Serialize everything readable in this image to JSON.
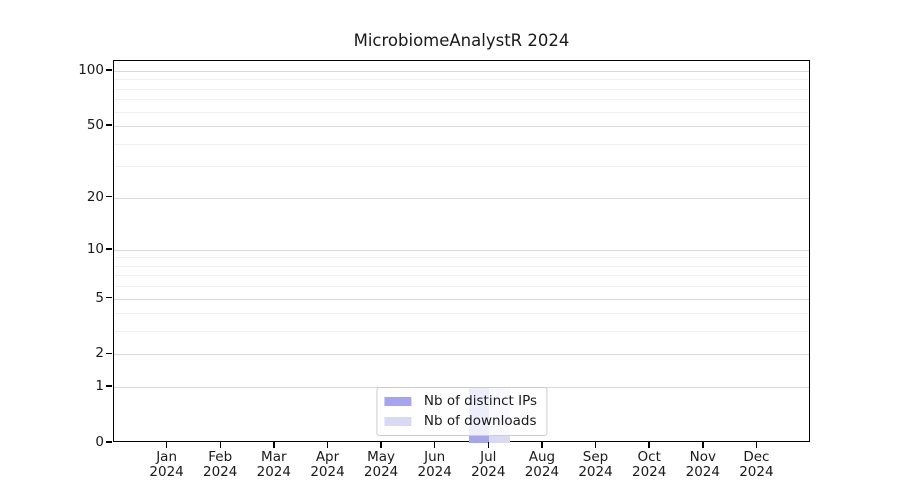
{
  "chart_data": {
    "type": "bar",
    "title": "MicrobiomeAnalystR 2024",
    "categories": [
      "Jan",
      "Feb",
      "Mar",
      "Apr",
      "May",
      "Jun",
      "Jul",
      "Aug",
      "Sep",
      "Oct",
      "Nov",
      "Dec"
    ],
    "category_year": "2024",
    "series": [
      {
        "name": "Nb of distinct IPs",
        "color": "#a5a5ed",
        "values": [
          0,
          0,
          0,
          0,
          0,
          0,
          1,
          0,
          0,
          0,
          0,
          0
        ]
      },
      {
        "name": "Nb of downloads",
        "color": "#d9d9f6",
        "values": [
          0,
          0,
          0,
          0,
          0,
          0,
          1,
          0,
          0,
          0,
          0,
          0
        ]
      }
    ],
    "y_scale": "log1p",
    "y_major_ticks": [
      0,
      1,
      2,
      5,
      10,
      20,
      50,
      100
    ],
    "y_minor_gridlines": [
      3,
      4,
      6,
      7,
      8,
      9,
      30,
      40,
      60,
      70,
      80,
      90
    ],
    "ylim": [
      0,
      100
    ],
    "grid": "horizontal",
    "legend_position": "lower center",
    "colors": {
      "major_grid": "#d9d9d9",
      "minor_grid": "#f0f0f0",
      "axis": "#000000",
      "text": "#1a1a1a",
      "legend_border": "#cccccc"
    }
  }
}
